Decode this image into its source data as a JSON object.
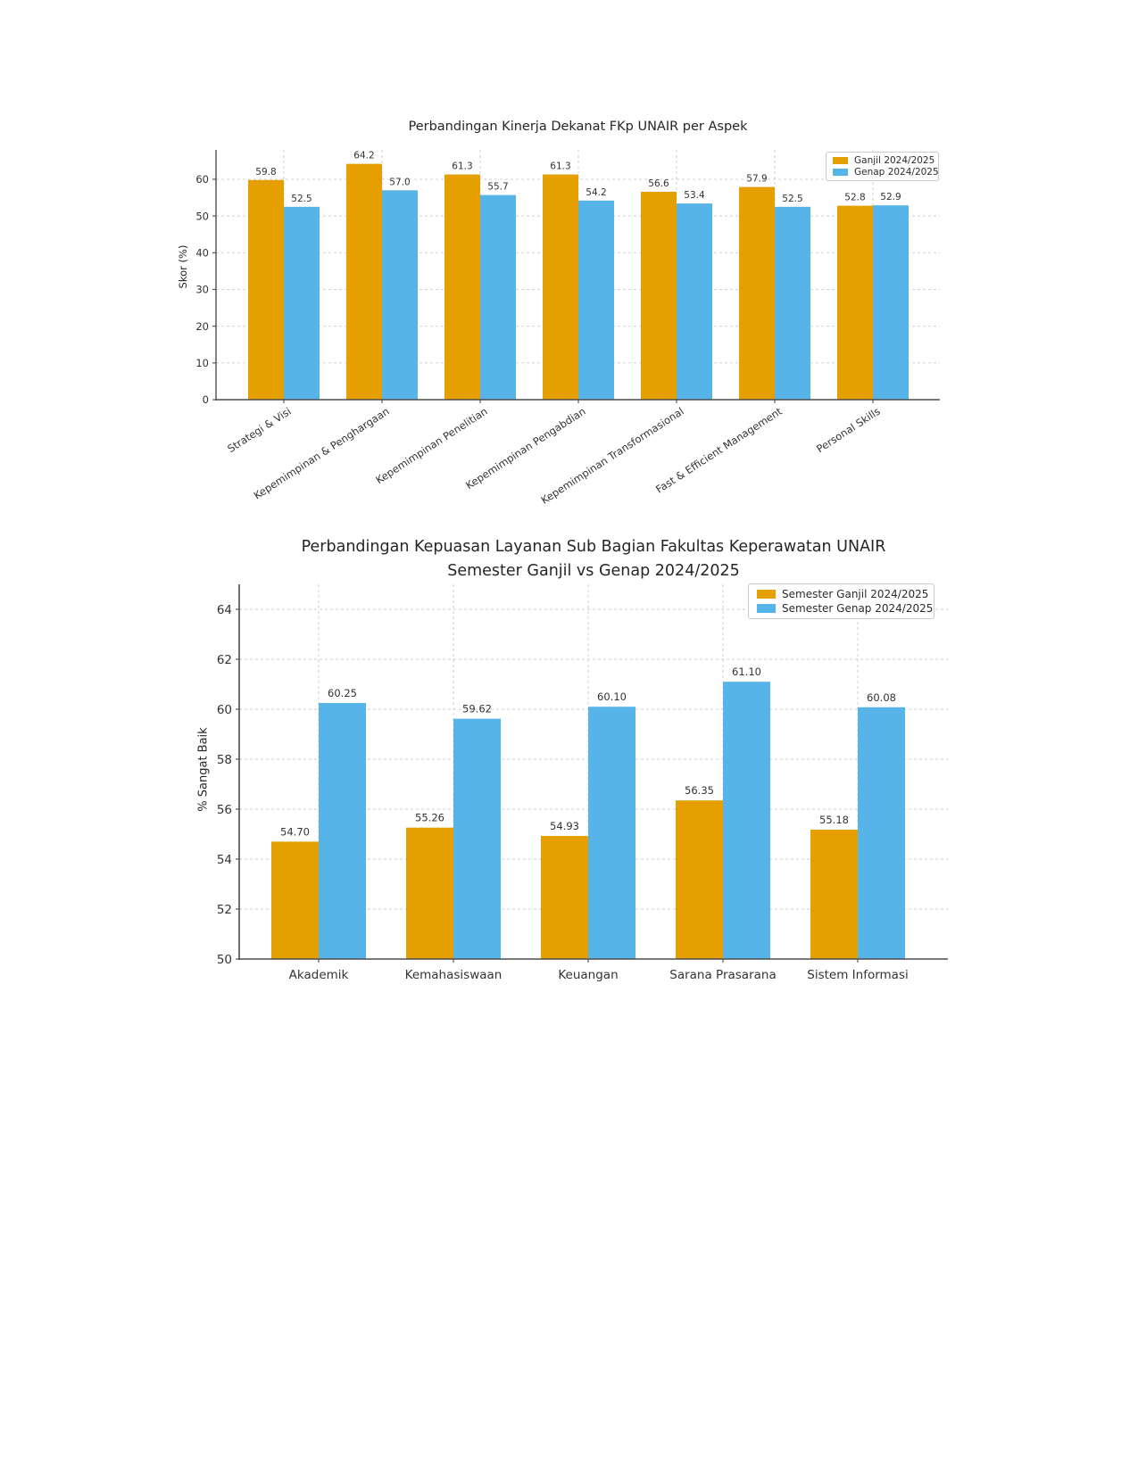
{
  "page": {
    "background": "#ffffff"
  },
  "colors": {
    "ganjil_orange": "#E69F00",
    "genap_blue": "#56B4E9",
    "grid": "#cdcdcd",
    "axis": "#4d4d4d",
    "text": "#333333"
  },
  "chart_data": [
    {
      "type": "bar",
      "title": "Perbandingan Kinerja Dekanat FKp UNAIR per Aspek",
      "xlabel": "",
      "ylabel": "Skor (%)",
      "ylim": [
        0,
        68
      ],
      "yticks": [
        0,
        10,
        20,
        30,
        40,
        50,
        60
      ],
      "grid": true,
      "legend_position": "upper right",
      "categories": [
        "Strategi & Visi",
        "Kepemimpinan & Penghargaan",
        "Kepemimpinan Penelitian",
        "Kepemimpinan Pengabdian",
        "Kepemimpinan Transformasional",
        "Fast & Efficient Management",
        "Personal Skills"
      ],
      "series": [
        {
          "name": "Ganjil 2024/2025",
          "color": "#E69F00",
          "values": [
            59.8,
            64.2,
            61.3,
            61.3,
            56.6,
            57.9,
            52.8
          ],
          "labels": [
            "59.8",
            "64.2",
            "61.3",
            "61.3",
            "56.6",
            "57.9",
            "52.8"
          ]
        },
        {
          "name": "Genap 2024/2025",
          "color": "#56B4E9",
          "values": [
            52.5,
            57.0,
            55.7,
            54.2,
            53.4,
            52.5,
            52.9
          ],
          "labels": [
            "52.5",
            "57.0",
            "55.7",
            "54.2",
            "53.4",
            "52.5",
            "52.9"
          ]
        }
      ]
    },
    {
      "type": "bar",
      "title": "Perbandingan Kepuasan Layanan Sub Bagian Fakultas Keperawatan UNAIR",
      "subtitle": "Semester Ganjil vs Genap 2024/2025",
      "xlabel": "",
      "ylabel": "% Sangat Baik",
      "ylim": [
        50,
        65
      ],
      "yticks": [
        50,
        52,
        54,
        56,
        58,
        60,
        62,
        64
      ],
      "grid": true,
      "legend_position": "upper right",
      "categories": [
        "Akademik",
        "Kemahasiswaan",
        "Keuangan",
        "Sarana Prasarana",
        "Sistem Informasi"
      ],
      "series": [
        {
          "name": "Semester Ganjil 2024/2025",
          "color": "#E69F00",
          "values": [
            54.7,
            55.26,
            54.93,
            56.35,
            55.18
          ],
          "labels": [
            "54.70",
            "55.26",
            "54.93",
            "56.35",
            "55.18"
          ]
        },
        {
          "name": "Semester Genap 2024/2025",
          "color": "#56B4E9",
          "values": [
            60.25,
            59.62,
            60.1,
            61.1,
            60.08
          ],
          "labels": [
            "60.25",
            "59.62",
            "60.10",
            "61.10",
            "60.08"
          ]
        }
      ]
    }
  ]
}
